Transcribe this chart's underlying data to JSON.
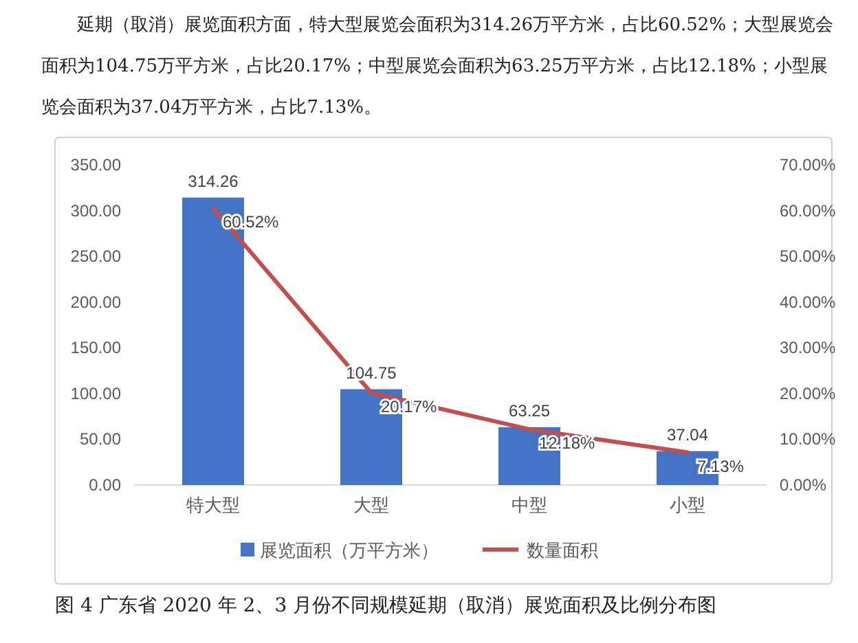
{
  "chart_data": {
    "type": "bar",
    "title": "图 4 广东省 2020 年 2、3 月份不同规模延期（取消）展览面积及比例分布图",
    "annotations": [
      "延期（取消）展览面积方面，特大型展览会面积为314.26万平方米，占比60.52%；大型展览会面积为104.75万平方米，占比20.17%；中型展览会面积为63.25万平方米，占比12.18%；小型展览会面积为37.04万平方米，占比7.13%。"
    ],
    "categories": [
      "特大型",
      "大型",
      "中型",
      "小型"
    ],
    "series": [
      {
        "name": "展览面积（万平方米）",
        "color": "#4472c4",
        "values": [
          314.26,
          104.75,
          63.25,
          37.04
        ],
        "value_labels": [
          "314.26",
          "104.75",
          "63.25",
          "37.04"
        ]
      },
      {
        "name": "数量面积",
        "type": "line",
        "axis": "y2",
        "color": "#c0504d",
        "values": [
          60.52,
          20.17,
          12.18,
          7.13
        ],
        "value_labels": [
          "60.52%",
          "20.17%",
          "12.18%",
          "7.13%"
        ]
      }
    ],
    "ylim": [
      0,
      350
    ],
    "yticks": [
      {
        "value": 0,
        "label": "0.00"
      },
      {
        "value": 50,
        "label": "50.00"
      },
      {
        "value": 100,
        "label": "100.00"
      },
      {
        "value": 150,
        "label": "150.00"
      },
      {
        "value": 200,
        "label": "200.00"
      },
      {
        "value": 250,
        "label": "250.00"
      },
      {
        "value": 300,
        "label": "300.00"
      },
      {
        "value": 350,
        "label": "350.00"
      }
    ],
    "y2lim": [
      0,
      70
    ],
    "y2ticks": [
      {
        "value": 0,
        "label": "0.00%"
      },
      {
        "value": 10,
        "label": "10.00%"
      },
      {
        "value": 20,
        "label": "20.00%"
      },
      {
        "value": 30,
        "label": "30.00%"
      },
      {
        "value": 40,
        "label": "40.00%"
      },
      {
        "value": 50,
        "label": "50.00%"
      },
      {
        "value": 60,
        "label": "60.00%"
      },
      {
        "value": 70,
        "label": "70.00%"
      }
    ],
    "legend": "bottom"
  }
}
